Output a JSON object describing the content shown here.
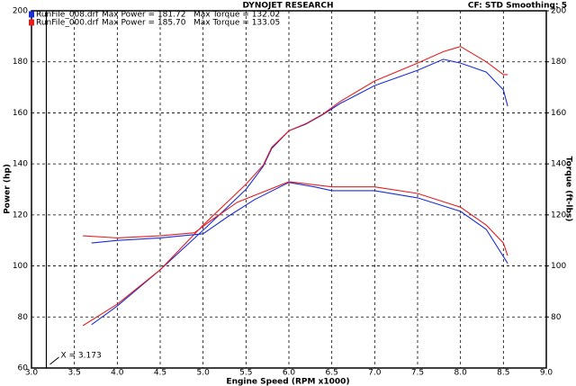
{
  "chart_data": {
    "type": "line",
    "title": "DYNOJET RESEARCH",
    "subtitle": "CF: STD  Smoothing: 5",
    "x_label": "Engine Speed (RPM x1000)",
    "y_label": "Power (hp)",
    "y2_label": "Torque (ft-lbs)",
    "legend": [
      {
        "file": "RunFile_008.drf",
        "power": "Max Power = 181.72",
        "torque": "Max Torque = 132.02",
        "color": "#1a2fd8"
      },
      {
        "file": "RunFile_000.drf",
        "power": "Max Power = 185.70",
        "torque": "Max Torque = 133.05",
        "color": "#e02020"
      }
    ],
    "cursor": {
      "value": 3.173,
      "label": "X = 3.173"
    },
    "xlim": [
      3,
      9
    ],
    "xticks": [
      {
        "value": 3,
        "label": "3.0"
      },
      3.5,
      {
        "value": 4,
        "label": "4.0"
      },
      4.5,
      {
        "value": 5,
        "label": "5.0"
      },
      5.5,
      {
        "value": 6,
        "label": "6.0"
      },
      6.5,
      {
        "value": 7,
        "label": "7.0"
      },
      7.5,
      {
        "value": 8,
        "label": "8.0"
      },
      8.5,
      {
        "value": 9,
        "label": "9.0"
      }
    ],
    "ylim": [
      60,
      200
    ],
    "yticks": [
      60,
      80,
      100,
      120,
      140,
      160,
      180,
      200
    ],
    "y2lim": [
      60,
      200
    ],
    "y2ticks": [
      80,
      100,
      120,
      140,
      160,
      180,
      200
    ],
    "grid": true,
    "series": [
      {
        "color": "#1a2fd8",
        "x": [
          3.7,
          4.0,
          4.5,
          5.0,
          5.5,
          5.7,
          5.8,
          6.0,
          6.2,
          6.4,
          6.6,
          7.0,
          7.5,
          7.8,
          8.0,
          8.3,
          8.5,
          8.55
        ],
        "values": [
          77,
          84.3,
          98.5,
          114,
          130,
          139,
          146,
          153,
          155.6,
          159.4,
          163.7,
          170.7,
          176.7,
          181,
          179.5,
          176,
          169,
          162.6
        ]
      },
      {
        "color": "#e02020",
        "x": [
          3.6,
          4.0,
          4.5,
          5.0,
          5.5,
          5.7,
          5.8,
          6.0,
          6.2,
          6.4,
          6.6,
          7.0,
          7.5,
          7.8,
          8.0,
          8.3,
          8.5,
          8.55
        ],
        "values": [
          76.6,
          85,
          98.5,
          116,
          132,
          139.5,
          146.5,
          153,
          155.8,
          159.6,
          164.5,
          172.5,
          179.5,
          184,
          186,
          180,
          175,
          175
        ]
      },
      {
        "color": "#1a2fd8",
        "axis": "y2",
        "x": [
          3.7,
          4.0,
          4.5,
          5.0,
          5.3,
          5.6,
          6.0,
          6.3,
          6.5,
          7.0,
          7.5,
          8.0,
          8.3,
          8.55
        ],
        "values": [
          109,
          110,
          111,
          112.6,
          119.6,
          126,
          132.7,
          131,
          129.5,
          129.5,
          126.7,
          121.4,
          114.3,
          101
        ]
      },
      {
        "color": "#e02020",
        "axis": "y2",
        "x": [
          3.6,
          4.0,
          4.5,
          4.9,
          5.1,
          5.4,
          6.0,
          6.5,
          7.0,
          7.5,
          8.0,
          8.3,
          8.5,
          8.55
        ],
        "values": [
          111.8,
          111,
          111.8,
          113,
          118,
          125,
          133,
          131,
          131,
          128.4,
          123,
          116,
          109,
          104
        ]
      }
    ]
  }
}
